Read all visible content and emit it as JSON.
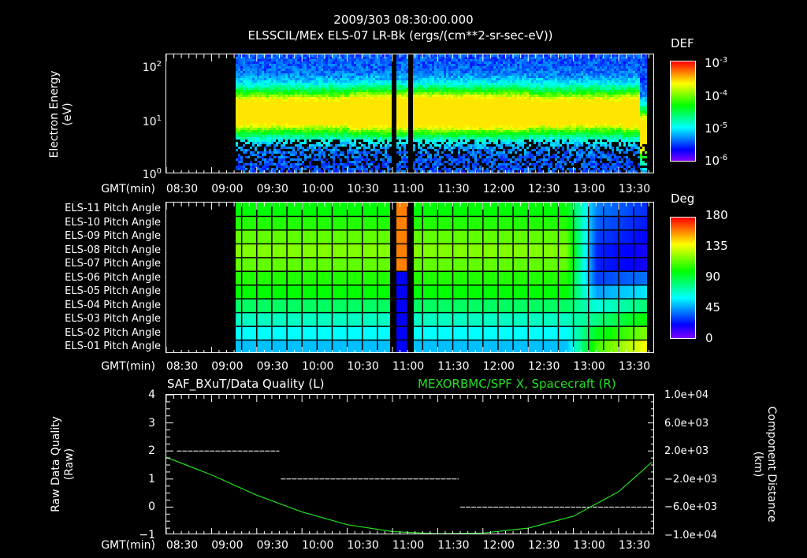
{
  "header": {
    "datetime": "2009/303 08:30:00.000",
    "title": "ELSSCIL/MEx ELS-07 LR-Bk  (ergs/(cm**2-sr-sec-eV))"
  },
  "time_axis": {
    "label": "GMT(min)",
    "ticks": [
      "08:30",
      "09:00",
      "09:30",
      "10:00",
      "10:30",
      "11:00",
      "11:30",
      "12:00",
      "12:30",
      "13:00",
      "13:30"
    ]
  },
  "panel1": {
    "ylabel_line1": "Electron Energy",
    "ylabel_line2": "(eV)",
    "yticks": [
      {
        "base": "10",
        "exp": "2"
      },
      {
        "base": "10",
        "exp": "1"
      },
      {
        "base": "10",
        "exp": "0"
      }
    ],
    "colorbar": {
      "title": "DEF",
      "ticks": [
        {
          "base": "10",
          "exp": "-3"
        },
        {
          "base": "10",
          "exp": "-4"
        },
        {
          "base": "10",
          "exp": "-5"
        },
        {
          "base": "10",
          "exp": "-6"
        }
      ]
    }
  },
  "panel2": {
    "row_labels": [
      "ELS-11 Pitch Angle",
      "ELS-10 Pitch Angle",
      "ELS-09 Pitch Angle",
      "ELS-08 Pitch Angle",
      "ELS-07 Pitch Angle",
      "ELS-06 Pitch Angle",
      "ELS-05 Pitch Angle",
      "ELS-04 Pitch Angle",
      "ELS-03 Pitch Angle",
      "ELS-02 Pitch Angle",
      "ELS-01 Pitch Angle"
    ],
    "colorbar": {
      "title": "Deg",
      "ticks": [
        "180",
        "135",
        "90",
        "45",
        "0"
      ]
    }
  },
  "panel3": {
    "title_left": "SAF_BXuT/Data Quality (L)",
    "title_right": "MEXORBMC/SPF X, Spacecraft (R)",
    "ylabel_left_line1": "Raw Data Quality",
    "ylabel_left_line2": "(Raw)",
    "yticks_left": [
      "4",
      "3",
      "2",
      "1",
      "0",
      "−1"
    ],
    "ylabel_right_line1": "Component Distance",
    "ylabel_right_line2": "(km)",
    "yticks_right": [
      "1.0e+04",
      "6.0e+03",
      "2.0e+03",
      "−2.0e+03",
      "−6.0e+03",
      "−1.0e+04"
    ],
    "series_color_right": "#22e022"
  },
  "chart_data": [
    {
      "type": "heatmap",
      "title": "ELSSCIL/MEx ELS-07 LR-Bk (ergs/(cm**2-sr-sec-eV))",
      "xlabel": "GMT(min)",
      "ylabel": "Electron Energy (eV)",
      "x_range": [
        "08:30",
        "13:53"
      ],
      "y_scale": "log",
      "ylim": [
        1,
        150
      ],
      "colorbar": {
        "label": "DEF",
        "scale": "log",
        "range": [
          1e-06,
          0.001
        ]
      },
      "notes": "No data before ~09:15. Peak flux band centered ~8-15 eV (~1e-4 to 3e-4); intensifies after ~10:40; data gaps near 11:00-11:07; band broadens/shifts lower near 13:50."
    },
    {
      "type": "heatmap",
      "title": "ELS Pitch Angle",
      "xlabel": "GMT(min)",
      "categories": [
        "ELS-11",
        "ELS-10",
        "ELS-09",
        "ELS-08",
        "ELS-07",
        "ELS-06",
        "ELS-05",
        "ELS-04",
        "ELS-03",
        "ELS-02",
        "ELS-01"
      ],
      "colorbar": {
        "label": "Deg",
        "range": [
          0,
          180
        ]
      },
      "approx_values_before_1255": [
        100,
        105,
        115,
        120,
        115,
        105,
        100,
        85,
        70,
        60,
        50
      ],
      "approx_values_after_1305": [
        40,
        35,
        30,
        25,
        25,
        30,
        45,
        65,
        80,
        95,
        110
      ],
      "notes": "No data before ~09:15; data gaps ~11:00-11:07"
    },
    {
      "type": "line",
      "title": "SAF_BXuT/Data Quality (L) / MEXORBMC/SPF X, Spacecraft (R)",
      "xlabel": "GMT(min)",
      "x": [
        "08:30",
        "09:00",
        "09:30",
        "10:00",
        "10:30",
        "11:00",
        "11:30",
        "12:00",
        "12:30",
        "13:00",
        "13:30",
        "13:52"
      ],
      "series": [
        {
          "name": "Raw Data Quality (L)",
          "axis": "left",
          "ylim": [
            -1,
            4
          ],
          "segments": [
            {
              "from": "08:37",
              "to": "09:45",
              "value": 2
            },
            {
              "from": "09:46",
              "to": "11:44",
              "value": 1
            },
            {
              "from": "11:45",
              "to": "13:50",
              "value": 0
            }
          ]
        },
        {
          "name": "SPF X, Spacecraft (R)",
          "axis": "right",
          "ylim": [
            -10000,
            10000
          ],
          "values": [
            1100,
            -1400,
            -4300,
            -6700,
            -8500,
            -9500,
            -9800,
            -9700,
            -9000,
            -7300,
            -3800,
            400
          ]
        }
      ]
    }
  ]
}
